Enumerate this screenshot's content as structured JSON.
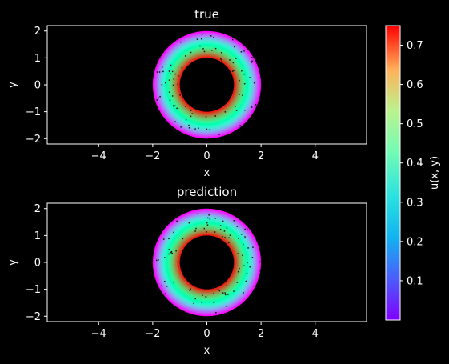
{
  "chart_data": [
    {
      "type": "heatmap",
      "title": "true",
      "xlabel": "x",
      "ylabel": "y",
      "xlim": [
        -5.9,
        5.9
      ],
      "ylim": [
        -2.2,
        2.2
      ],
      "xticks": [
        -4,
        -2,
        0,
        2,
        4
      ],
      "yticks": [
        -2,
        -1,
        0,
        1,
        2
      ],
      "domain": {
        "shape": "annulus",
        "inner_radius": 1,
        "outer_radius": 2
      },
      "field": {
        "expression": "u ≈ 0.75 at r = 1, decreasing to ≈ 0 at r = 2"
      }
    },
    {
      "type": "heatmap",
      "title": "prediction",
      "xlabel": "x",
      "ylabel": "y",
      "xlim": [
        -5.9,
        5.9
      ],
      "ylim": [
        -2.2,
        2.2
      ],
      "xticks": [
        -4,
        -2,
        0,
        2,
        4
      ],
      "yticks": [
        -2,
        -1,
        0,
        1,
        2
      ],
      "domain": {
        "shape": "annulus",
        "inner_radius": 1,
        "outer_radius": 2
      },
      "field": {
        "expression": "u ≈ 0.75 at r = 1, decreasing to ≈ 0 at r = 2"
      }
    }
  ],
  "colorbar": {
    "label": "u(x, y)",
    "vmin": 0.0,
    "vmax": 0.75,
    "ticks": [
      0.1,
      0.2,
      0.3,
      0.4,
      0.5,
      0.6,
      0.7
    ],
    "colormap": "rainbow"
  },
  "colors": {
    "background": "#000000",
    "axes": "#ffffff",
    "text": "#ffffff"
  }
}
